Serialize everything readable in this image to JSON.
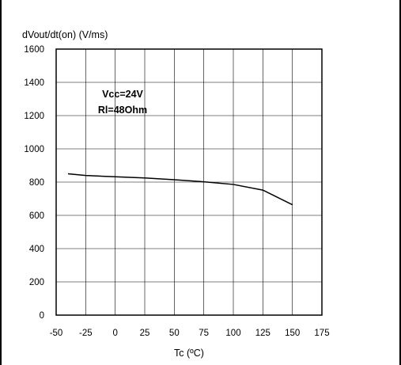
{
  "chart_data": {
    "type": "line",
    "title": "",
    "ylabel": "dVout/dt(on) (V/ms)",
    "xlabel": "Tc (ºC)",
    "xlim": [
      -50,
      175
    ],
    "ylim": [
      0,
      1600
    ],
    "xticks": [
      -50,
      -25,
      0,
      25,
      50,
      75,
      100,
      125,
      150,
      175
    ],
    "yticks": [
      0,
      200,
      400,
      600,
      800,
      1000,
      1200,
      1400,
      1600
    ],
    "grid": true,
    "annotations": [
      "Vcc=24V",
      "Rl=48Ohm"
    ],
    "series": [
      {
        "x": [
          -40,
          -25,
          0,
          25,
          50,
          75,
          100,
          125,
          150
        ],
        "y": [
          850,
          840,
          832,
          825,
          814,
          802,
          786,
          752,
          664
        ]
      }
    ],
    "colors": {
      "line": "#000000",
      "grid": "#000000"
    }
  }
}
